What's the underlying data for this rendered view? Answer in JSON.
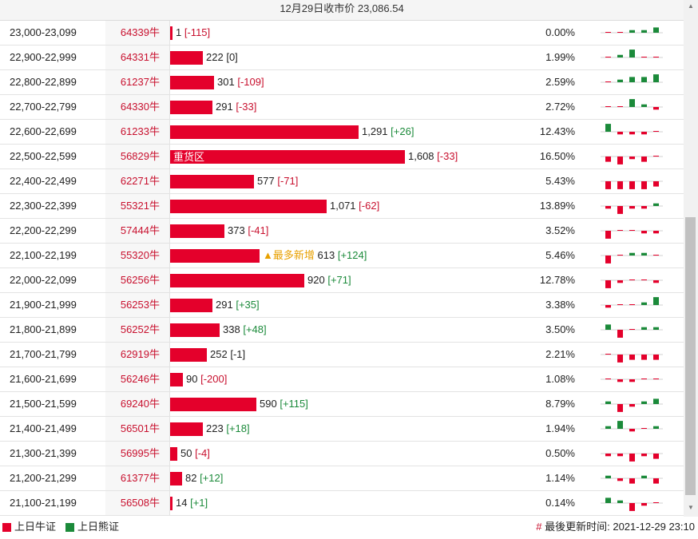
{
  "header": {
    "title": "12月29日收市价 23,086.54"
  },
  "colors": {
    "bull": "#e4002b",
    "bear": "#1b8a3a",
    "accent": "#c8102e",
    "tag": "#e8a000"
  },
  "rows": [
    {
      "range": "23,000-23,099",
      "code": "64339牛",
      "count": "1",
      "count_num": 1,
      "change": "[-115]",
      "change_type": "red",
      "label": "",
      "pct": "0.00%",
      "spark": [
        0,
        0,
        1,
        1,
        2,
        -3
      ]
    },
    {
      "range": "22,900-22,999",
      "code": "64331牛",
      "count": "222",
      "count_num": 222,
      "change": "[0]",
      "change_type": "neutral",
      "label": "",
      "pct": "1.99%",
      "spark": [
        0,
        1,
        3,
        0,
        0,
        0
      ]
    },
    {
      "range": "22,800-22,899",
      "code": "61237牛",
      "count": "301",
      "count_num": 301,
      "change": "[-109]",
      "change_type": "red",
      "label": "",
      "pct": "2.59%",
      "spark": [
        0,
        1,
        2,
        2,
        3,
        -2
      ]
    },
    {
      "range": "22,700-22,799",
      "code": "64330牛",
      "count": "291",
      "count_num": 291,
      "change": "[-33]",
      "change_type": "red",
      "label": "",
      "pct": "2.72%",
      "spark": [
        0,
        0,
        3,
        1,
        -1,
        -1
      ]
    },
    {
      "range": "22,600-22,699",
      "code": "61233牛",
      "count": "1,291",
      "count_num": 1291,
      "change": "[+26]",
      "change_type": "green",
      "label": "",
      "pct": "12.43%",
      "spark": [
        3,
        -1,
        -1,
        -1,
        0,
        1
      ]
    },
    {
      "range": "22,500-22,599",
      "code": "56829牛",
      "count": "1,608",
      "count_num": 1608,
      "change": "[-33]",
      "change_type": "red",
      "label": "重货区",
      "pct": "16.50%",
      "spark": [
        -2,
        -3,
        -1,
        -2,
        0,
        -1
      ]
    },
    {
      "range": "22,400-22,499",
      "code": "62271牛",
      "count": "577",
      "count_num": 577,
      "change": "[-71]",
      "change_type": "red",
      "label": "",
      "pct": "5.43%",
      "spark": [
        -3,
        -3,
        -3,
        -3,
        -2,
        -1
      ]
    },
    {
      "range": "22,300-22,399",
      "code": "55321牛",
      "count": "1,071",
      "count_num": 1071,
      "change": "[-62]",
      "change_type": "red",
      "label": "",
      "pct": "13.89%",
      "spark": [
        -1,
        -3,
        -1,
        -1,
        1,
        -3
      ]
    },
    {
      "range": "22,200-22,299",
      "code": "57444牛",
      "count": "373",
      "count_num": 373,
      "change": "[-41]",
      "change_type": "red",
      "label": "",
      "pct": "3.52%",
      "spark": [
        -3,
        0,
        0,
        -1,
        -1,
        -1
      ]
    },
    {
      "range": "22,100-22,199",
      "code": "55320牛",
      "count": "613",
      "count_num": 613,
      "change": "[+124]",
      "change_type": "green",
      "label": "",
      "tag": "▲最多新增",
      "pct": "5.46%",
      "spark": [
        -3,
        0,
        1,
        1,
        0,
        2
      ]
    },
    {
      "range": "22,000-22,099",
      "code": "56256牛",
      "count": "920",
      "count_num": 920,
      "change": "[+71]",
      "change_type": "green",
      "label": "",
      "pct": "12.78%",
      "spark": [
        -3,
        -1,
        0,
        0,
        -1,
        2
      ]
    },
    {
      "range": "21,900-21,999",
      "code": "56253牛",
      "count": "291",
      "count_num": 291,
      "change": "[+35]",
      "change_type": "green",
      "label": "",
      "pct": "3.38%",
      "spark": [
        -1,
        0,
        0,
        1,
        3,
        3
      ]
    },
    {
      "range": "21,800-21,899",
      "code": "56252牛",
      "count": "338",
      "count_num": 338,
      "change": "[+48]",
      "change_type": "green",
      "label": "",
      "pct": "3.50%",
      "spark": [
        2,
        -3,
        0,
        1,
        1,
        3
      ]
    },
    {
      "range": "21,700-21,799",
      "code": "62919牛",
      "count": "252",
      "count_num": 252,
      "change": "[-1]",
      "change_type": "neutral",
      "label": "",
      "pct": "2.21%",
      "spark": [
        0,
        -3,
        -2,
        -2,
        -2,
        0
      ]
    },
    {
      "range": "21,600-21,699",
      "code": "56246牛",
      "count": "90",
      "count_num": 90,
      "change": "[-200]",
      "change_type": "red",
      "label": "",
      "pct": "1.08%",
      "spark": [
        0,
        -1,
        -1,
        0,
        0,
        -4
      ]
    },
    {
      "range": "21,500-21,599",
      "code": "69240牛",
      "count": "590",
      "count_num": 590,
      "change": "[+115]",
      "change_type": "green",
      "label": "",
      "pct": "8.79%",
      "spark": [
        1,
        -3,
        -1,
        1,
        2,
        3
      ]
    },
    {
      "range": "21,400-21,499",
      "code": "56501牛",
      "count": "223",
      "count_num": 223,
      "change": "[+18]",
      "change_type": "green",
      "label": "",
      "pct": "1.94%",
      "spark": [
        1,
        3,
        -1,
        0,
        1,
        3
      ]
    },
    {
      "range": "21,300-21,399",
      "code": "56995牛",
      "count": "50",
      "count_num": 50,
      "change": "[-4]",
      "change_type": "red",
      "label": "",
      "pct": "0.50%",
      "spark": [
        -1,
        -1,
        -3,
        -1,
        -2,
        -1
      ]
    },
    {
      "range": "21,200-21,299",
      "code": "61377牛",
      "count": "82",
      "count_num": 82,
      "change": "[+12]",
      "change_type": "green",
      "label": "",
      "pct": "1.14%",
      "spark": [
        1,
        -1,
        -2,
        1,
        -2,
        3
      ]
    },
    {
      "range": "21,100-21,199",
      "code": "56508牛",
      "count": "14",
      "count_num": 14,
      "change": "[+1]",
      "change_type": "green",
      "label": "",
      "pct": "0.14%",
      "spark": [
        2,
        1,
        -3,
        -1,
        0,
        0
      ]
    }
  ],
  "footer": {
    "legend_bull": "上日牛证",
    "legend_bear": "上日熊证",
    "hash": "#",
    "update_label": "最後更新时间:",
    "update_time": "2021-12-29 23:10"
  }
}
